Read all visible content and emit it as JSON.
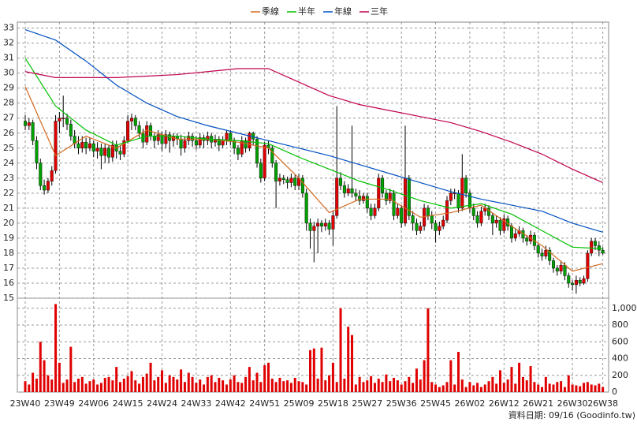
{
  "chart_data": {
    "type": "candlestick",
    "legend": "top",
    "grid": true,
    "up_color": "#e00000",
    "down_color": "#00a000",
    "volume_color": "#e00000",
    "ylim": [
      15,
      33.4
    ],
    "yticks": [
      15,
      16,
      17,
      18,
      19,
      20,
      21,
      22,
      23,
      24,
      25,
      26,
      27,
      28,
      29,
      30,
      31,
      32,
      33
    ],
    "vlim": [
      0,
      1120
    ],
    "vticks": [
      0,
      200,
      400,
      600,
      800,
      {
        "value": 1000,
        "label": "1,000"
      }
    ],
    "xticks": [
      {
        "value": 0,
        "label": "23W40"
      },
      {
        "value": 9,
        "label": "23W49"
      },
      {
        "value": 18,
        "label": "24W06"
      },
      {
        "value": 27,
        "label": "24W15"
      },
      {
        "value": 36,
        "label": "24W24"
      },
      {
        "value": 45,
        "label": "24W33"
      },
      {
        "value": 54,
        "label": "24W42"
      },
      {
        "value": 63,
        "label": "24W51"
      },
      {
        "value": 72,
        "label": "25W09"
      },
      {
        "value": 81,
        "label": "25W18"
      },
      {
        "value": 90,
        "label": "25W27"
      },
      {
        "value": 99,
        "label": "25W36"
      },
      {
        "value": 108,
        "label": "25W45"
      },
      {
        "value": 117,
        "label": "26W02"
      },
      {
        "value": 126,
        "label": "26W12"
      },
      {
        "value": 135,
        "label": "26W21"
      },
      {
        "value": 144,
        "label": "26W30"
      },
      {
        "value": 152,
        "label": "26W38"
      }
    ],
    "note": "資料日期: 09/16  (Goodinfo.tw)",
    "candles": [
      [
        26.8,
        27.2,
        26.2,
        26.5
      ],
      [
        26.5,
        27.0,
        26.2,
        26.7
      ],
      [
        26.7,
        26.9,
        25.2,
        25.5
      ],
      [
        25.5,
        25.8,
        23.6,
        24.0
      ],
      [
        24.0,
        24.3,
        22.2,
        22.5
      ],
      [
        22.5,
        22.9,
        21.9,
        22.2
      ],
      [
        22.2,
        23.0,
        22.0,
        22.8
      ],
      [
        22.8,
        23.8,
        22.5,
        23.5
      ],
      [
        23.5,
        27.2,
        23.3,
        26.8
      ],
      [
        26.8,
        27.4,
        26.0,
        27.0
      ],
      [
        27.0,
        28.5,
        26.4,
        27.0
      ],
      [
        27.0,
        27.3,
        26.2,
        26.6
      ],
      [
        26.6,
        26.9,
        25.5,
        25.8
      ],
      [
        25.8,
        26.2,
        25.0,
        25.3
      ],
      [
        25.3,
        25.8,
        24.6,
        25.0
      ],
      [
        25.0,
        25.8,
        24.7,
        25.4
      ],
      [
        25.4,
        25.7,
        24.6,
        25.0
      ],
      [
        25.0,
        25.7,
        24.8,
        25.3
      ],
      [
        25.3,
        25.5,
        24.4,
        24.8
      ],
      [
        24.8,
        25.4,
        24.3,
        25.0
      ],
      [
        25.0,
        25.3,
        23.6,
        24.5
      ],
      [
        24.5,
        25.3,
        24.0,
        25.0
      ],
      [
        25.0,
        25.2,
        24.0,
        24.4
      ],
      [
        24.4,
        25.5,
        24.1,
        25.2
      ],
      [
        25.2,
        25.5,
        24.3,
        24.8
      ],
      [
        24.8,
        25.2,
        24.2,
        24.6
      ],
      [
        24.6,
        25.8,
        24.4,
        25.5
      ],
      [
        25.5,
        27.2,
        25.3,
        26.8
      ],
      [
        26.8,
        27.3,
        26.2,
        27.0
      ],
      [
        27.0,
        27.2,
        26.2,
        26.5
      ],
      [
        26.5,
        26.8,
        25.7,
        26.0
      ],
      [
        26.0,
        26.3,
        25.0,
        25.4
      ],
      [
        25.4,
        26.8,
        25.2,
        26.5
      ],
      [
        26.5,
        26.7,
        25.5,
        25.8
      ],
      [
        25.8,
        26.0,
        25.0,
        25.5
      ],
      [
        25.5,
        26.2,
        25.2,
        25.9
      ],
      [
        25.9,
        26.1,
        24.8,
        25.3
      ],
      [
        25.3,
        26.2,
        25.0,
        25.9
      ],
      [
        25.9,
        26.1,
        24.7,
        25.5
      ],
      [
        25.5,
        26.0,
        25.1,
        25.8
      ],
      [
        25.8,
        26.0,
        25.2,
        25.6
      ],
      [
        25.6,
        25.9,
        24.5,
        25.0
      ],
      [
        25.0,
        25.8,
        24.7,
        25.5
      ],
      [
        25.5,
        26.1,
        25.2,
        25.8
      ],
      [
        25.8,
        26.0,
        25.1,
        25.5
      ],
      [
        25.5,
        25.8,
        24.9,
        25.2
      ],
      [
        25.2,
        26.0,
        25.0,
        25.7
      ],
      [
        25.7,
        25.9,
        25.0,
        25.5
      ],
      [
        25.5,
        26.1,
        25.2,
        25.8
      ],
      [
        25.8,
        26.0,
        25.0,
        25.4
      ],
      [
        25.4,
        25.9,
        25.1,
        25.6
      ],
      [
        25.6,
        25.8,
        24.8,
        25.2
      ],
      [
        25.2,
        25.8,
        25.0,
        25.5
      ],
      [
        25.5,
        26.2,
        25.2,
        26.0
      ],
      [
        26.0,
        26.2,
        25.2,
        25.5
      ],
      [
        25.5,
        25.7,
        24.6,
        25.0
      ],
      [
        25.0,
        25.2,
        24.2,
        24.6
      ],
      [
        24.6,
        25.8,
        24.4,
        25.5
      ],
      [
        25.5,
        25.7,
        24.7,
        25.0
      ],
      [
        25.0,
        26.1,
        24.8,
        26.0
      ],
      [
        26.0,
        26.1,
        25.2,
        25.6
      ],
      [
        25.6,
        25.8,
        23.7,
        24.0
      ],
      [
        24.0,
        24.3,
        22.7,
        23.0
      ],
      [
        23.0,
        25.4,
        22.8,
        25.2
      ],
      [
        25.2,
        25.5,
        24.6,
        25.0
      ],
      [
        25.0,
        25.2,
        23.7,
        24.0
      ],
      [
        24.0,
        24.2,
        21.0,
        22.8
      ],
      [
        22.8,
        23.3,
        22.5,
        23.0
      ],
      [
        23.0,
        23.2,
        22.6,
        22.9
      ],
      [
        22.9,
        23.1,
        22.3,
        22.7
      ],
      [
        22.7,
        23.3,
        22.4,
        23.0
      ],
      [
        23.0,
        23.2,
        22.2,
        22.5
      ],
      [
        22.5,
        23.3,
        22.2,
        23.0
      ],
      [
        23.0,
        23.2,
        21.7,
        22.0
      ],
      [
        22.0,
        22.3,
        19.5,
        20.0
      ],
      [
        20.0,
        20.3,
        18.3,
        19.5
      ],
      [
        19.5,
        20.1,
        17.4,
        19.8
      ],
      [
        19.8,
        20.3,
        18.0,
        20.0
      ],
      [
        20.0,
        20.2,
        19.4,
        19.8
      ],
      [
        19.8,
        20.3,
        19.5,
        20.0
      ],
      [
        20.0,
        20.2,
        19.2,
        19.6
      ],
      [
        19.6,
        20.8,
        18.5,
        20.5
      ],
      [
        20.5,
        27.8,
        20.3,
        23.0
      ],
      [
        23.0,
        23.4,
        22.2,
        22.5
      ],
      [
        22.5,
        22.8,
        21.7,
        22.0
      ],
      [
        22.0,
        22.6,
        21.8,
        22.3
      ],
      [
        22.3,
        26.5,
        21.7,
        22.0
      ],
      [
        22.0,
        22.3,
        21.5,
        21.8
      ],
      [
        21.8,
        22.2,
        21.2,
        21.5
      ],
      [
        21.5,
        22.0,
        21.3,
        21.8
      ],
      [
        21.8,
        22.0,
        20.7,
        21.0
      ],
      [
        21.0,
        21.3,
        20.2,
        20.5
      ],
      [
        20.5,
        21.3,
        20.3,
        21.0
      ],
      [
        21.0,
        23.3,
        20.8,
        23.0
      ],
      [
        23.0,
        23.2,
        21.7,
        22.0
      ],
      [
        22.0,
        22.2,
        21.2,
        21.5
      ],
      [
        21.5,
        22.3,
        21.3,
        22.0
      ],
      [
        22.0,
        22.2,
        20.2,
        20.5
      ],
      [
        20.5,
        21.3,
        20.3,
        21.0
      ],
      [
        21.0,
        21.2,
        19.7,
        20.0
      ],
      [
        20.0,
        26.5,
        19.8,
        23.0
      ],
      [
        23.0,
        23.2,
        20.2,
        20.5
      ],
      [
        20.5,
        20.8,
        19.5,
        20.0
      ],
      [
        20.0,
        20.3,
        19.2,
        19.5
      ],
      [
        19.5,
        20.1,
        19.3,
        19.8
      ],
      [
        19.8,
        21.3,
        19.5,
        21.0
      ],
      [
        21.0,
        21.2,
        20.2,
        20.5
      ],
      [
        20.5,
        20.8,
        19.6,
        20.0
      ],
      [
        20.0,
        20.2,
        18.7,
        19.5
      ],
      [
        19.5,
        20.1,
        19.2,
        19.8
      ],
      [
        19.8,
        20.5,
        19.6,
        20.2
      ],
      [
        20.2,
        21.8,
        20.0,
        21.5
      ],
      [
        21.5,
        22.3,
        21.2,
        22.0
      ],
      [
        22.0,
        22.3,
        21.6,
        22.0
      ],
      [
        22.0,
        22.2,
        20.7,
        21.0
      ],
      [
        21.0,
        24.6,
        20.8,
        23.0
      ],
      [
        23.0,
        23.2,
        21.7,
        22.0
      ],
      [
        22.0,
        22.2,
        20.7,
        21.0
      ],
      [
        21.0,
        21.3,
        20.2,
        20.5
      ],
      [
        20.5,
        20.8,
        19.7,
        20.0
      ],
      [
        20.0,
        21.1,
        19.8,
        20.8
      ],
      [
        20.8,
        21.3,
        20.5,
        21.0
      ],
      [
        21.0,
        21.2,
        20.2,
        20.5
      ],
      [
        20.5,
        20.7,
        19.2,
        20.0
      ],
      [
        20.0,
        20.5,
        19.7,
        20.2
      ],
      [
        20.2,
        20.4,
        19.2,
        19.5
      ],
      [
        19.5,
        20.6,
        19.3,
        20.3
      ],
      [
        20.3,
        20.5,
        19.5,
        19.8
      ],
      [
        19.8,
        20.0,
        18.7,
        19.0
      ],
      [
        19.0,
        19.6,
        18.8,
        19.3
      ],
      [
        19.3,
        19.8,
        19.1,
        19.5
      ],
      [
        19.5,
        19.7,
        18.7,
        19.0
      ],
      [
        19.0,
        19.2,
        18.5,
        18.8
      ],
      [
        18.8,
        19.5,
        18.6,
        19.2
      ],
      [
        19.2,
        19.4,
        18.2,
        18.5
      ],
      [
        18.5,
        18.7,
        17.7,
        18.0
      ],
      [
        18.0,
        18.3,
        17.5,
        17.8
      ],
      [
        17.8,
        18.5,
        17.6,
        18.2
      ],
      [
        18.2,
        18.4,
        17.2,
        17.5
      ],
      [
        17.5,
        17.7,
        16.7,
        17.0
      ],
      [
        17.0,
        17.2,
        16.5,
        16.8
      ],
      [
        16.8,
        17.5,
        16.6,
        17.2
      ],
      [
        17.2,
        17.4,
        16.2,
        16.5
      ],
      [
        16.5,
        16.7,
        15.7,
        16.0
      ],
      [
        16.0,
        16.2,
        15.5,
        15.9
      ],
      [
        15.9,
        16.5,
        15.3,
        16.2
      ],
      [
        16.2,
        16.4,
        15.8,
        16.0
      ],
      [
        16.0,
        16.5,
        15.9,
        16.3
      ],
      [
        16.3,
        18.2,
        16.1,
        18.0
      ],
      [
        18.0,
        19.0,
        17.8,
        18.8
      ],
      [
        18.8,
        19.0,
        18.2,
        18.5
      ],
      [
        18.5,
        18.8,
        17.8,
        18.2
      ],
      [
        18.2,
        18.4,
        17.9,
        18.0
      ]
    ],
    "volume": [
      130,
      90,
      230,
      160,
      600,
      380,
      200,
      150,
      1050,
      350,
      110,
      150,
      540,
      120,
      160,
      180,
      100,
      130,
      150,
      90,
      110,
      170,
      180,
      140,
      300,
      120,
      160,
      190,
      250,
      140,
      100,
      180,
      220,
      350,
      140,
      180,
      260,
      110,
      200,
      180,
      150,
      270,
      120,
      230,
      180,
      110,
      150,
      90,
      180,
      200,
      120,
      170,
      140,
      90,
      150,
      200,
      120,
      110,
      180,
      300,
      140,
      230,
      120,
      320,
      350,
      160,
      120,
      170,
      130,
      140,
      110,
      170,
      130,
      120,
      90,
      500,
      520,
      160,
      530,
      140,
      200,
      350,
      120,
      1000,
      160,
      780,
      680,
      90,
      180,
      120,
      140,
      190,
      110,
      160,
      120,
      210,
      130,
      170,
      140,
      90,
      130,
      180,
      110,
      280,
      150,
      380,
      1000,
      120,
      90,
      60,
      80,
      120,
      380,
      90,
      480,
      150,
      60,
      120,
      80,
      110,
      60,
      90,
      130,
      180,
      100,
      260,
      110,
      150,
      300,
      100,
      350,
      180,
      140,
      310,
      120,
      90,
      60,
      180,
      100,
      90,
      120,
      130,
      60,
      200,
      90,
      80,
      70,
      110,
      120,
      90,
      80,
      100,
      60
    ],
    "series": [
      {
        "name": "季線",
        "color": "#d2691e",
        "x": [
          0,
          8,
          16,
          24,
          32,
          40,
          48,
          56,
          64,
          72,
          80,
          88,
          96,
          104,
          112,
          120,
          128,
          136,
          144,
          152
        ],
        "values": [
          29.1,
          24.5,
          25.8,
          25.0,
          26.2,
          25.6,
          25.6,
          25.4,
          25.0,
          23.0,
          20.7,
          21.6,
          21.6,
          20.4,
          20.7,
          21.2,
          19.8,
          18.5,
          16.8,
          17.3
        ]
      },
      {
        "name": "半年",
        "color": "#00c000",
        "x": [
          0,
          8,
          16,
          24,
          32,
          40,
          48,
          56,
          64,
          72,
          80,
          88,
          96,
          104,
          112,
          120,
          128,
          136,
          144,
          152
        ],
        "values": [
          31.0,
          27.8,
          26.2,
          25.2,
          25.8,
          25.8,
          25.6,
          25.5,
          25.3,
          24.4,
          23.6,
          22.8,
          22.2,
          21.5,
          21.0,
          21.3,
          20.6,
          19.5,
          18.4,
          18.3
        ]
      },
      {
        "name": "年線",
        "color": "#0050c0",
        "x": [
          0,
          8,
          16,
          24,
          32,
          40,
          48,
          56,
          64,
          72,
          80,
          88,
          96,
          104,
          112,
          120,
          128,
          136,
          144,
          152
        ],
        "values": [
          32.9,
          32.2,
          30.8,
          29.2,
          28.0,
          27.1,
          26.5,
          26.0,
          25.5,
          25.0,
          24.5,
          23.9,
          23.3,
          22.7,
          22.1,
          21.6,
          21.2,
          20.8,
          20.0,
          19.4
        ]
      },
      {
        "name": "三年",
        "color": "#c0004e",
        "x": [
          0,
          8,
          16,
          24,
          32,
          40,
          48,
          56,
          64,
          72,
          80,
          88,
          96,
          104,
          112,
          120,
          128,
          136,
          144,
          152
        ],
        "values": [
          30.1,
          29.7,
          29.7,
          29.7,
          29.8,
          29.9,
          30.1,
          30.3,
          30.3,
          29.4,
          28.5,
          27.9,
          27.5,
          27.1,
          26.7,
          26.1,
          25.4,
          24.6,
          23.6,
          22.7
        ]
      }
    ]
  }
}
